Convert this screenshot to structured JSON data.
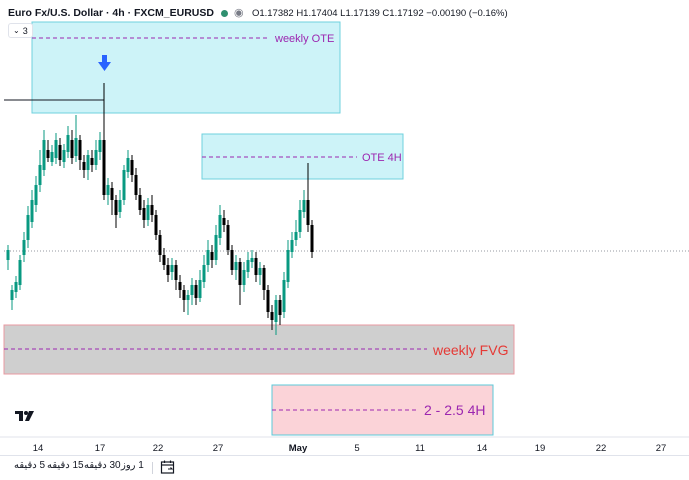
{
  "legend": {
    "symbol": "Euro Fx/U.S. Dollar · 4h · FXCM_EURUSD",
    "ohlc": "O1.17382 H1.17404 L1.17139 C1.17192 −0.00190 (−0.16%)",
    "status_color": "#2f8f6f"
  },
  "indicators_count": "3",
  "annotations": {
    "weekly_ote": "weekly OTE",
    "ote_4h": "OTE 4H",
    "weekly_fvg": "weekly FVG",
    "range_2_25_4h": "2 - 2.5 4H"
  },
  "time_axis": [
    "14",
    "17",
    "22",
    "27",
    "May",
    "5",
    "11",
    "14",
    "19",
    "22",
    "27"
  ],
  "toolbar": {
    "timeframes": [
      "5 دقیقه",
      "15 دقیقه",
      "30 دقیقه",
      "1 روز"
    ]
  },
  "colors": {
    "up": "#089981",
    "down": "#000000",
    "ote_fill": "#cdf3f8",
    "ote_border": "#5bc8d8",
    "fvg_fill": "#cfcfcf",
    "range_fill": "#fbd3d8",
    "dashed_purple": "#9c27b0",
    "fvg_text": "#e53935",
    "arrow": "#2962ff"
  }
}
